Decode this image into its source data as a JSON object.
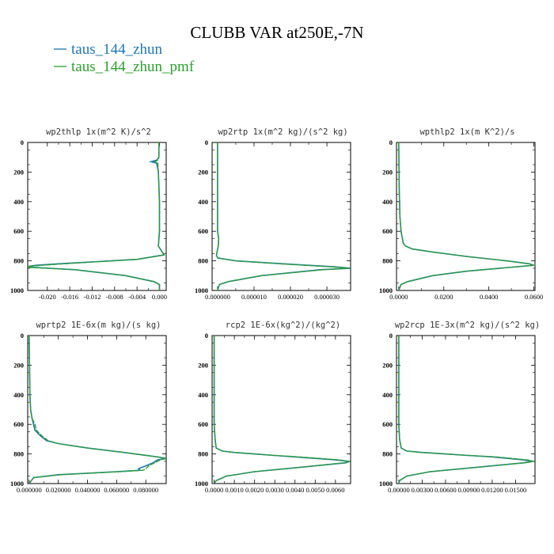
{
  "title": "CLUBB VAR at250E,-7N",
  "legend": [
    {
      "label": "taus_144_zhun",
      "color": "#1f77b4"
    },
    {
      "label": "taus_144_zhun_pmf",
      "color": "#2ca02c"
    }
  ],
  "chart_data": [
    {
      "type": "line",
      "title": "wp2thlp  1x(m^2 K)/s^2",
      "ylim": [
        1000,
        0
      ],
      "yticks": [
        "0",
        "200",
        "400",
        "600",
        "800",
        "1000"
      ],
      "xlim": [
        -0.0235,
        0.0012
      ],
      "xticks": [
        -0.02,
        -0.016,
        -0.012,
        -0.008,
        -0.004,
        0.0
      ],
      "xtick_labels": [
        "-0.020",
        "-0.016",
        "-0.012",
        "-0.008",
        "-0.004",
        "0.000"
      ],
      "series": [
        {
          "name": "taus_144_zhun",
          "y": [
            0,
            100,
            120,
            130,
            140,
            200,
            400,
            600,
            700,
            740,
            760,
            790,
            820,
            830,
            840,
            845,
            860,
            900,
            940,
            960,
            1000
          ],
          "x": [
            -0.0001,
            -0.0001,
            -0.0005,
            -0.0015,
            -0.0005,
            -0.0002,
            0,
            0,
            -0.0002,
            0.0005,
            0.0008,
            -0.004,
            -0.018,
            -0.022,
            -0.024,
            -0.022,
            -0.015,
            -0.006,
            -0.001,
            0,
            0
          ]
        },
        {
          "name": "taus_144_zhun_pmf",
          "y": [
            0,
            100,
            120,
            130,
            140,
            200,
            400,
            600,
            700,
            740,
            760,
            790,
            820,
            830,
            840,
            845,
            860,
            900,
            940,
            960,
            1000
          ],
          "x": [
            -0.0001,
            -0.0001,
            -0.0003,
            -0.0008,
            -0.0003,
            -0.0002,
            0,
            0,
            -0.0002,
            0.0005,
            0.0009,
            -0.004,
            -0.017,
            -0.021,
            -0.024,
            -0.023,
            -0.015,
            -0.006,
            -0.001,
            0,
            0
          ]
        }
      ]
    },
    {
      "type": "line",
      "title": "wp2rtp  1x(m^2 kg)/(s^2 kg)",
      "ylim": [
        1000,
        0
      ],
      "yticks": [
        "0",
        "200",
        "400",
        "600",
        "800",
        "1000"
      ],
      "xlim": [
        -1.5e-06,
        3.65e-05
      ],
      "xticks": [
        0,
        1e-05,
        2e-05,
        3e-05
      ],
      "xtick_labels": [
        "0.000000",
        "0.000010",
        "0.000020",
        "0.000030"
      ],
      "series": [
        {
          "name": "taus_144_zhun",
          "y": [
            0,
            400,
            600,
            650,
            700,
            760,
            780,
            800,
            820,
            840,
            850,
            860,
            900,
            940,
            960,
            1000
          ],
          "x": [
            0,
            0,
            0,
            3e-07,
            2e-07,
            -3e-07,
            0,
            5e-06,
            1.8e-05,
            3.2e-05,
            3.65e-05,
            2.8e-05,
            1.2e-05,
            3e-06,
            5e-07,
            0
          ]
        },
        {
          "name": "taus_144_zhun_pmf",
          "y": [
            0,
            400,
            600,
            650,
            700,
            760,
            780,
            800,
            820,
            840,
            850,
            860,
            900,
            940,
            960,
            1000
          ],
          "x": [
            0,
            0,
            0,
            3e-07,
            2e-07,
            -3e-07,
            0,
            5e-06,
            1.7e-05,
            3.1e-05,
            3.6e-05,
            2.9e-05,
            1.2e-05,
            3e-06,
            5e-07,
            0
          ]
        }
      ]
    },
    {
      "type": "line",
      "title": "wpthlp2  1x(m K^2)/s",
      "ylim": [
        1000,
        0
      ],
      "yticks": [
        "0",
        "200",
        "400",
        "600",
        "800",
        "1000"
      ],
      "xlim": [
        -0.001,
        0.0605
      ],
      "xticks": [
        0,
        0.02,
        0.04,
        0.06
      ],
      "xtick_labels": [
        "0.0000",
        "0.0200",
        "0.0400",
        "0.0600"
      ],
      "series": [
        {
          "name": "taus_144_zhun",
          "y": [
            0,
            300,
            500,
            600,
            680,
            700,
            720,
            740,
            770,
            800,
            820,
            830,
            850,
            870,
            900,
            940,
            960,
            1000
          ],
          "x": [
            0,
            0.0002,
            0.0005,
            0.001,
            0.002,
            0.003,
            0.006,
            0.015,
            0.03,
            0.048,
            0.058,
            0.06,
            0.045,
            0.03,
            0.015,
            0.004,
            0.001,
            0
          ]
        },
        {
          "name": "taus_144_zhun_pmf",
          "y": [
            0,
            300,
            500,
            600,
            680,
            700,
            720,
            740,
            770,
            800,
            820,
            830,
            850,
            870,
            900,
            940,
            960,
            1000
          ],
          "x": [
            0,
            0.0002,
            0.0005,
            0.001,
            0.002,
            0.003,
            0.006,
            0.015,
            0.03,
            0.048,
            0.058,
            0.06,
            0.045,
            0.03,
            0.015,
            0.004,
            0.001,
            0
          ]
        }
      ]
    },
    {
      "type": "line",
      "title": "wprtp2  1E-6x(m kg)/(s kg)",
      "ylim": [
        1000,
        0
      ],
      "yticks": [
        "0",
        "200",
        "400",
        "600",
        "800",
        "1000"
      ],
      "xlim": [
        -0.001,
        0.094
      ],
      "xticks": [
        0,
        0.02,
        0.04,
        0.06,
        0.08
      ],
      "xtick_labels": [
        "0.000000",
        "0.020000",
        "0.040000",
        "0.060000",
        "0.080000"
      ],
      "series": [
        {
          "name": "taus_144_zhun",
          "y": [
            0,
            400,
            500,
            560,
            600,
            640,
            680,
            710,
            730,
            760,
            790,
            820,
            830,
            840,
            860,
            880,
            900,
            910,
            920,
            940,
            960,
            1000
          ],
          "x": [
            0,
            0.0005,
            0.001,
            0.002,
            0.003,
            0.004,
            0.008,
            0.012,
            0.02,
            0.04,
            0.065,
            0.088,
            0.094,
            0.088,
            0.085,
            0.08,
            0.075,
            0.076,
            0.06,
            0.02,
            0.003,
            0
          ]
        },
        {
          "name": "taus_144_zhun_pmf",
          "y": [
            0,
            400,
            500,
            560,
            600,
            640,
            680,
            710,
            730,
            760,
            790,
            820,
            830,
            840,
            860,
            880,
            900,
            910,
            920,
            940,
            960,
            1000
          ],
          "x": [
            0,
            0.0005,
            0.001,
            0.002,
            0.004,
            0.005,
            0.009,
            0.013,
            0.02,
            0.04,
            0.065,
            0.088,
            0.094,
            0.09,
            0.086,
            0.082,
            0.08,
            0.078,
            0.062,
            0.022,
            0.003,
            0
          ]
        }
      ]
    },
    {
      "type": "line",
      "title": "rcp2  1E-6x(kg^2)/(kg^2)",
      "ylim": [
        1000,
        0
      ],
      "yticks": [
        "0",
        "200",
        "400",
        "600",
        "800",
        "1000"
      ],
      "xlim": [
        -0.0001,
        0.00675
      ],
      "xticks": [
        0,
        0.001,
        0.002,
        0.003,
        0.004,
        0.005,
        0.006
      ],
      "xtick_labels": [
        "0.0000",
        "0.0010",
        "0.0020",
        "0.0030",
        "0.0040",
        "0.0050",
        "0.0060"
      ],
      "series": [
        {
          "name": "taus_144_zhun",
          "y": [
            0,
            600,
            700,
            760,
            780,
            790,
            800,
            810,
            820,
            840,
            850,
            860,
            880,
            900,
            920,
            950,
            980,
            1000
          ],
          "x": [
            0,
            0,
            5e-05,
            0.0001,
            0.0004,
            0.001,
            0.002,
            0.003,
            0.004,
            0.006,
            0.0067,
            0.0065,
            0.005,
            0.0035,
            0.002,
            0.0006,
            0.0001,
            0
          ]
        },
        {
          "name": "taus_144_zhun_pmf",
          "y": [
            0,
            600,
            700,
            760,
            780,
            790,
            800,
            810,
            820,
            840,
            850,
            860,
            880,
            900,
            920,
            950,
            980,
            1000
          ],
          "x": [
            0,
            0,
            5e-05,
            0.0001,
            0.0004,
            0.001,
            0.002,
            0.003,
            0.0042,
            0.0062,
            0.0067,
            0.0064,
            0.005,
            0.0035,
            0.002,
            0.0006,
            0.0001,
            0
          ]
        }
      ]
    },
    {
      "type": "line",
      "title": "wp2rcp  1E-3x(m^2 kg)/(s^2 kg)",
      "ylim": [
        1000,
        0
      ],
      "yticks": [
        "0",
        "200",
        "400",
        "600",
        "800",
        "1000"
      ],
      "xlim": [
        -0.0003,
        0.0175
      ],
      "xticks": [
        0,
        0.003,
        0.006,
        0.009,
        0.012,
        0.015
      ],
      "xtick_labels": [
        "0.00000",
        "0.00300",
        "0.00600",
        "0.00900",
        "0.01200",
        "0.01500"
      ],
      "series": [
        {
          "name": "taus_144_zhun",
          "y": [
            0,
            600,
            700,
            760,
            780,
            790,
            800,
            810,
            820,
            840,
            850,
            860,
            880,
            900,
            920,
            950,
            980,
            1000
          ],
          "x": [
            0,
            0,
            0.0001,
            0.0003,
            0.001,
            0.003,
            0.006,
            0.009,
            0.012,
            0.016,
            0.0172,
            0.016,
            0.012,
            0.008,
            0.004,
            0.001,
            0.0001,
            0
          ]
        },
        {
          "name": "taus_144_zhun_pmf",
          "y": [
            0,
            600,
            700,
            760,
            780,
            790,
            800,
            810,
            820,
            840,
            850,
            860,
            880,
            900,
            920,
            950,
            980,
            1000
          ],
          "x": [
            0,
            0,
            0.0001,
            0.0003,
            0.001,
            0.003,
            0.006,
            0.009,
            0.0125,
            0.0165,
            0.0174,
            0.0162,
            0.012,
            0.008,
            0.004,
            0.001,
            0.0001,
            0
          ]
        }
      ]
    }
  ]
}
